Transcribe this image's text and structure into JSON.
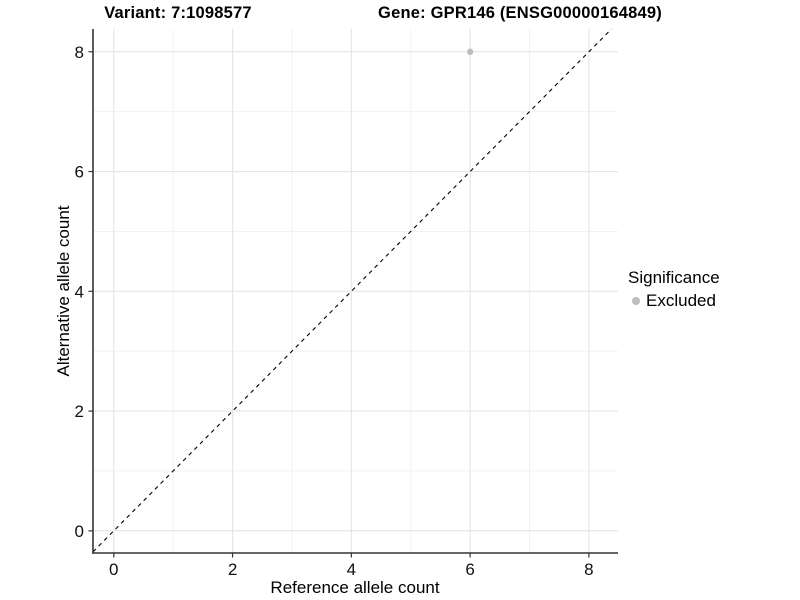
{
  "chart_data": {
    "type": "scatter",
    "title_variant": "Variant: 7:1098577",
    "title_gene": "Gene: GPR146 (ENSG00000164849)",
    "xlabel": "Reference allele count",
    "ylabel": "Alternative allele count",
    "xlim": [
      -0.35,
      8.49
    ],
    "ylim": [
      -0.37,
      8.38
    ],
    "xticks": [
      0,
      2,
      4,
      6,
      8
    ],
    "yticks": [
      0,
      2,
      4,
      6,
      8
    ],
    "xticks_minor": [
      1,
      3,
      5,
      7
    ],
    "yticks_minor": [
      1,
      3,
      5,
      7
    ],
    "grid": "major and minor gridlines on white panel",
    "legend": {
      "title": "Significance",
      "position": "right"
    },
    "series": [
      {
        "name": "Excluded",
        "color": "#bdbdbd",
        "points": [
          {
            "x": 6,
            "y": 8
          }
        ]
      }
    ],
    "reference_line": {
      "slope": 1,
      "intercept": 0,
      "style": "dashed",
      "color": "#000000"
    },
    "colors": {
      "grid_major": "#e4e4e4",
      "grid_minor": "#f0f0f0",
      "axis_line": "#333333",
      "tick_mark": "#333333",
      "tick_text": "#111111",
      "background": "#ffffff"
    }
  }
}
